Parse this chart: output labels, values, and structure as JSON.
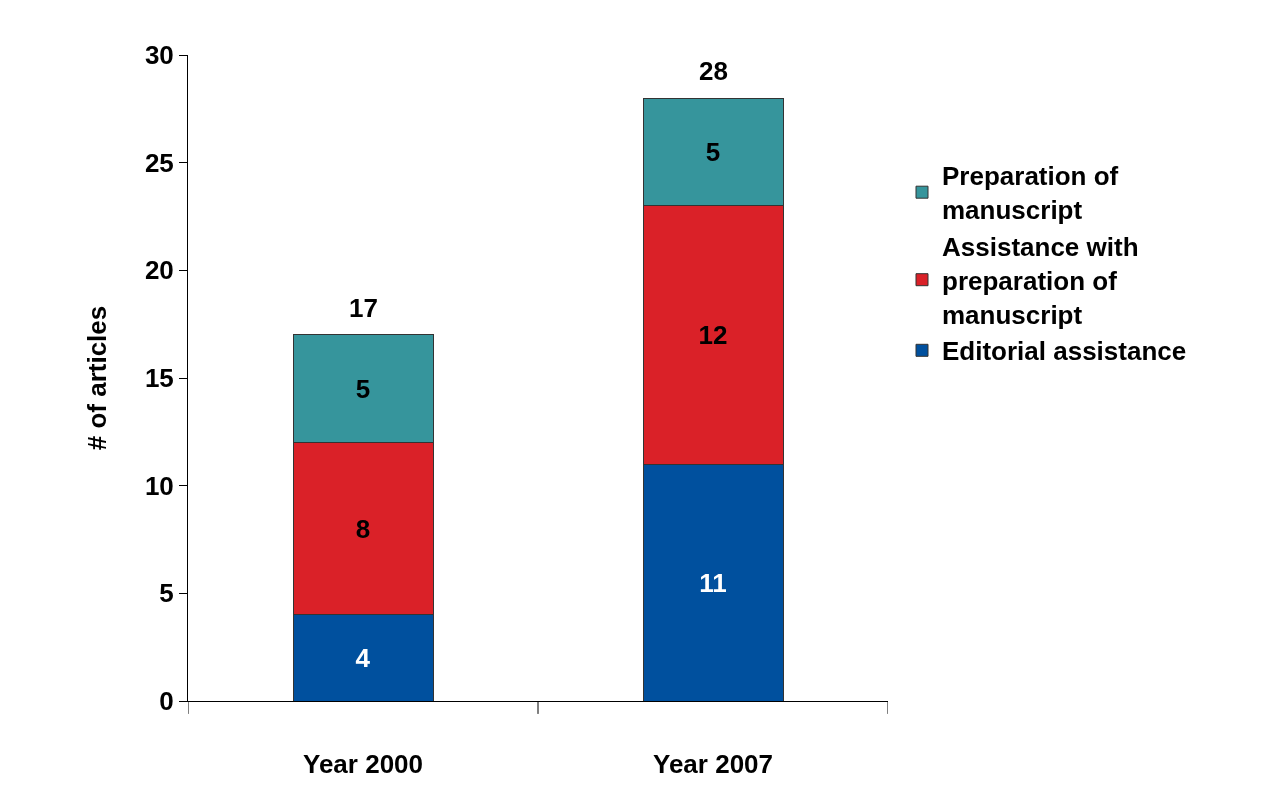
{
  "chart_data": {
    "type": "bar",
    "stacked": true,
    "ylabel": "# of articles",
    "categories": [
      "Year 2000",
      "Year 2007"
    ],
    "series": [
      {
        "name": "Editorial assistance",
        "color": "#00509e",
        "values": [
          4,
          11
        ]
      },
      {
        "name": "Assistance with preparation of manuscript",
        "color": "#da2128",
        "values": [
          8,
          12
        ]
      },
      {
        "name": "Preparation of manuscript",
        "color": "#36959c",
        "values": [
          5,
          5
        ]
      }
    ],
    "totals": [
      "17",
      "28"
    ],
    "data_labels": true,
    "ylim": [
      0,
      30
    ],
    "yticks": [
      0,
      5,
      10,
      15,
      20,
      25,
      30
    ],
    "grid": false,
    "legend": "right"
  }
}
